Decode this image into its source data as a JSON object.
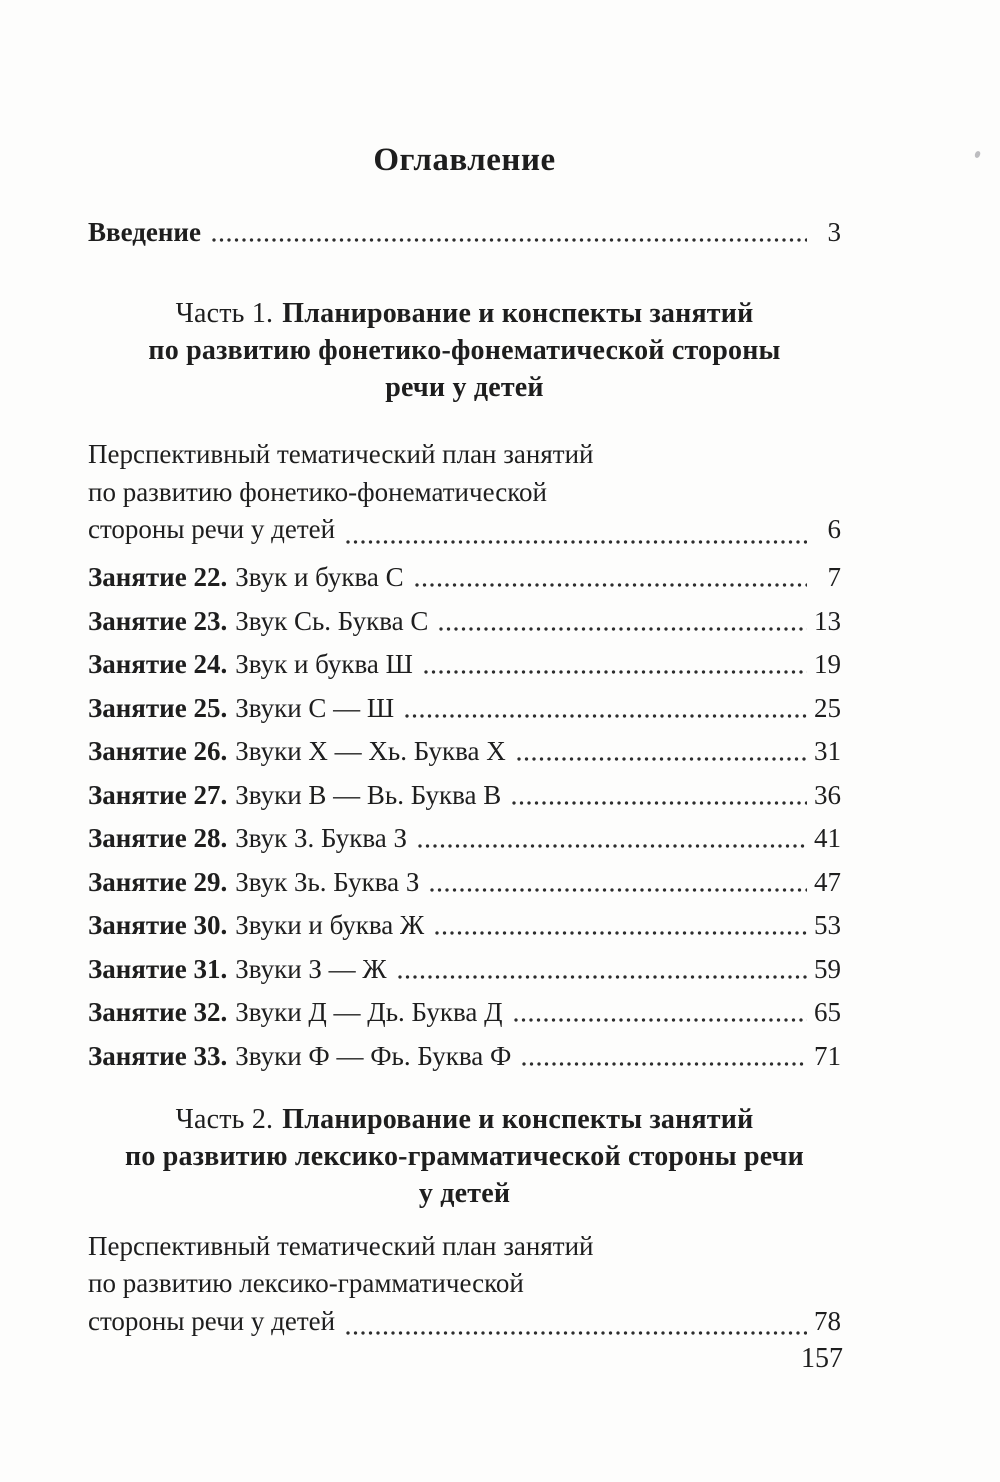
{
  "title": "Оглавление",
  "introduction": {
    "label": "Введение",
    "page": "3"
  },
  "part1": {
    "heading": {
      "prefix": "Часть 1.",
      "line1": "Планирование и конспекты занятий",
      "line2": "по развитию фонетико-фонематической стороны",
      "line3": "речи у детей"
    },
    "plan": {
      "line1": "Перспективный тематический план занятий",
      "line2": "по развитию фонетико-фонематической",
      "line3": "стороны речи у детей",
      "page": "6"
    },
    "lessons": [
      {
        "label_bold": "Занятие 22.",
        "label_text": "Звук и буква С",
        "page": "7"
      },
      {
        "label_bold": "Занятие 23.",
        "label_text": "Звук Сь. Буква С",
        "page": "13"
      },
      {
        "label_bold": "Занятие 24.",
        "label_text": "Звук и буква Ш",
        "page": "19"
      },
      {
        "label_bold": "Занятие 25.",
        "label_text": "Звуки С — Ш",
        "page": "25"
      },
      {
        "label_bold": "Занятие 26.",
        "label_text": "Звуки Х — Хь. Буква Х",
        "page": "31"
      },
      {
        "label_bold": "Занятие 27.",
        "label_text": "Звуки В — Вь. Буква В",
        "page": "36"
      },
      {
        "label_bold": "Занятие 28.",
        "label_text": "Звук З. Буква З",
        "page": "41"
      },
      {
        "label_bold": "Занятие 29.",
        "label_text": "Звук Зь. Буква З",
        "page": "47"
      },
      {
        "label_bold": "Занятие 30.",
        "label_text": "Звуки и буква Ж",
        "page": "53"
      },
      {
        "label_bold": "Занятие 31.",
        "label_text": "Звуки З — Ж",
        "page": "59"
      },
      {
        "label_bold": "Занятие 32.",
        "label_text": "Звуки Д — Дь. Буква Д",
        "page": "65"
      },
      {
        "label_bold": "Занятие 33.",
        "label_text": "Звуки Ф — Фь. Буква Ф",
        "page": "71"
      }
    ]
  },
  "part2": {
    "heading": {
      "prefix": "Часть 2.",
      "line1": "Планирование и конспекты занятий",
      "line2": "по развитию лексико-грамматической стороны речи",
      "line3": "у детей"
    },
    "plan": {
      "line1": "Перспективный тематический план занятий",
      "line2": "по развитию лексико-грамматической",
      "line3": "стороны речи у детей",
      "page": "78"
    }
  },
  "page_number": "157"
}
